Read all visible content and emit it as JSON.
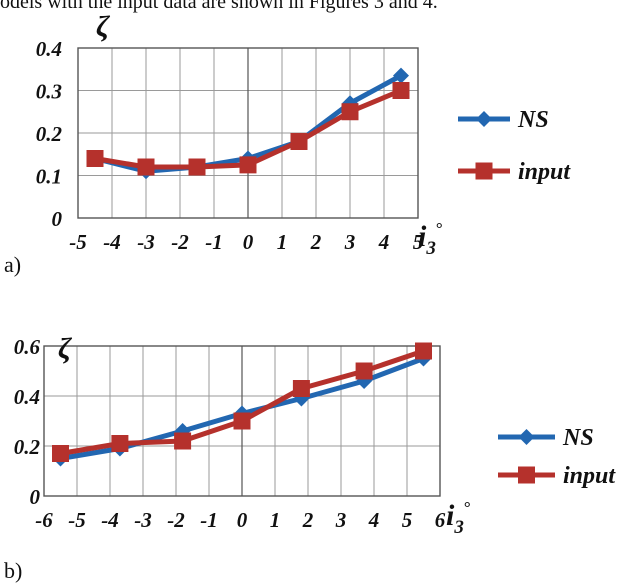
{
  "intro_text": "odels with the input data are shown in Figures 3 and 4.",
  "colors": {
    "ns": "#2267b1",
    "input": "#b5312c",
    "grid": "#9a9a9a",
    "axis": "#555555"
  },
  "chart_data": [
    {
      "type": "line",
      "panel_label": "a)",
      "ylabel": "ζ",
      "xlabel": {
        "main": "i",
        "sub": "3",
        "sup": "°"
      },
      "xlim": [
        -5,
        5
      ],
      "ylim": [
        0,
        0.4
      ],
      "x_ticks": [
        "-5",
        "-4",
        "-3",
        "-2",
        "-1",
        "0",
        "1",
        "2",
        "3",
        "4",
        "5"
      ],
      "y_ticks": [
        "0",
        "0.1",
        "0.2",
        "0.3",
        "0.4"
      ],
      "grid": true,
      "legend": "right",
      "series": [
        {
          "name": "NS",
          "marker": "diamond",
          "color_key": "ns",
          "x": [
            -4.5,
            -3,
            -1.5,
            0,
            1.5,
            3,
            4.5
          ],
          "y": [
            0.14,
            0.11,
            0.12,
            0.14,
            0.18,
            0.27,
            0.335
          ]
        },
        {
          "name": "input",
          "marker": "square",
          "color_key": "input",
          "x": [
            -4.5,
            -3,
            -1.5,
            0,
            1.5,
            3,
            4.5
          ],
          "y": [
            0.14,
            0.12,
            0.12,
            0.125,
            0.18,
            0.25,
            0.3
          ]
        }
      ]
    },
    {
      "type": "line",
      "panel_label": "b)",
      "ylabel": "ζ",
      "xlabel": {
        "main": "i",
        "sub": "3",
        "sup": "°"
      },
      "xlim": [
        -6,
        6
      ],
      "ylim": [
        0,
        0.6
      ],
      "x_ticks": [
        "-6",
        "-5",
        "-4",
        "-3",
        "-2",
        "-1",
        "0",
        "1",
        "2",
        "3",
        "4",
        "5",
        "6"
      ],
      "y_ticks": [
        "0",
        "0.2",
        "0.4",
        "0.6"
      ],
      "grid": true,
      "legend": "right",
      "series": [
        {
          "name": "NS",
          "marker": "diamond",
          "color_key": "ns",
          "x": [
            -5.5,
            -3.7,
            -1.8,
            0,
            1.8,
            3.7,
            5.5
          ],
          "y": [
            0.15,
            0.19,
            0.26,
            0.33,
            0.39,
            0.46,
            0.55
          ]
        },
        {
          "name": "input",
          "marker": "square",
          "color_key": "input",
          "x": [
            -5.5,
            -3.7,
            -1.8,
            0,
            1.8,
            3.7,
            5.5
          ],
          "y": [
            0.17,
            0.21,
            0.22,
            0.3,
            0.43,
            0.5,
            0.58
          ]
        }
      ]
    }
  ]
}
